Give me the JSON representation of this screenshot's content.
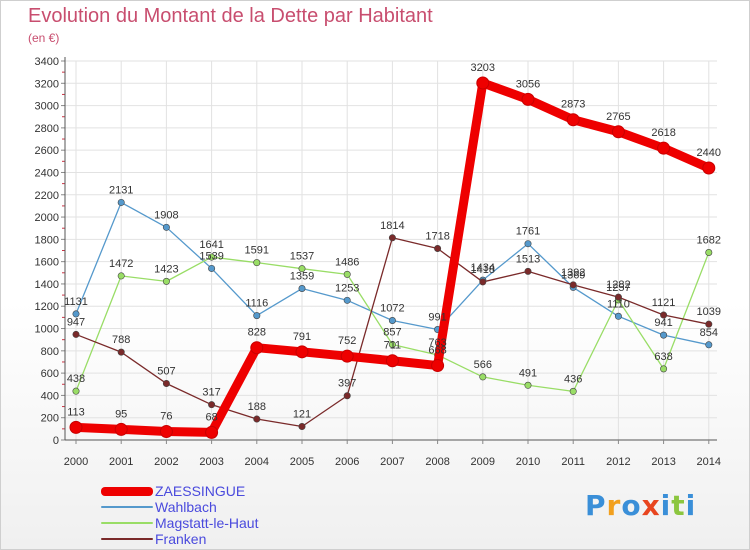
{
  "chart_data": {
    "type": "line",
    "title": "Evolution du Montant de la Dette par Habitant",
    "subtitle": "(en €)",
    "x": [
      "2000",
      "2001",
      "2002",
      "2003",
      "2004",
      "2005",
      "2006",
      "2007",
      "2008",
      "2009",
      "2010",
      "2011",
      "2012",
      "2013",
      "2014"
    ],
    "ylim": [
      0,
      3400
    ],
    "yticks": [
      0,
      200,
      400,
      600,
      800,
      1000,
      1200,
      1400,
      1600,
      1800,
      2000,
      2200,
      2400,
      2600,
      2800,
      3000,
      3200,
      3400
    ],
    "grid": true,
    "legend_placement": "bottom-left",
    "series": [
      {
        "name": "ZAESSINGUE",
        "color": "#ee0000",
        "values": [
          113,
          95,
          76,
          68,
          828,
          791,
          752,
          711,
          668,
          3203,
          3056,
          2873,
          2765,
          2618,
          2440
        ],
        "labels": [
          "113",
          "95",
          "76",
          "68",
          "828",
          "791",
          "752",
          "711",
          "668",
          "3203",
          "3056",
          "2873",
          "2765",
          "2618",
          "2440"
        ]
      },
      {
        "name": "Wahlbach",
        "color": "#5599cc",
        "values": [
          1131,
          2131,
          1908,
          1539,
          1116,
          1359,
          1253,
          1072,
          991,
          1434,
          1761,
          1369,
          1110,
          941,
          854
        ],
        "labels": [
          "1131",
          "2131",
          "1908",
          "1539",
          "1116",
          "1359",
          "1253",
          "1072",
          "991",
          "1434",
          "1761",
          "1369",
          "1110",
          "941",
          "854"
        ]
      },
      {
        "name": "Magstatt-le-Haut",
        "color": "#99dd66",
        "values": [
          438,
          1472,
          1423,
          1641,
          1591,
          1537,
          1486,
          857,
          763,
          566,
          491,
          436,
          1257,
          638,
          1682
        ],
        "labels": [
          "438",
          "1472",
          "1423",
          "1641",
          "1591",
          "1537",
          "1486",
          "857",
          "763",
          "566",
          "491",
          "436",
          "1257",
          "638",
          "1682"
        ]
      },
      {
        "name": "Franken",
        "color": "#7a2a2a",
        "values": [
          947,
          788,
          507,
          317,
          188,
          121,
          397,
          1814,
          1718,
          1418,
          1513,
          1392,
          1282,
          1121,
          1039
        ],
        "labels": [
          "947",
          "788",
          "507",
          "317",
          "188",
          "121",
          "397",
          "1814",
          "1718",
          "1418",
          "1513",
          "1392",
          "1282",
          "1121",
          "1039"
        ]
      }
    ]
  },
  "logo": {
    "letters": [
      "P",
      "r",
      "o",
      "x",
      "i",
      "t",
      "i"
    ],
    "colors": [
      "#3a8fd8",
      "#f2a01e",
      "#3a8fd8",
      "#e8451f",
      "#3a8fd8",
      "#8cc63f",
      "#3a8fd8"
    ]
  }
}
